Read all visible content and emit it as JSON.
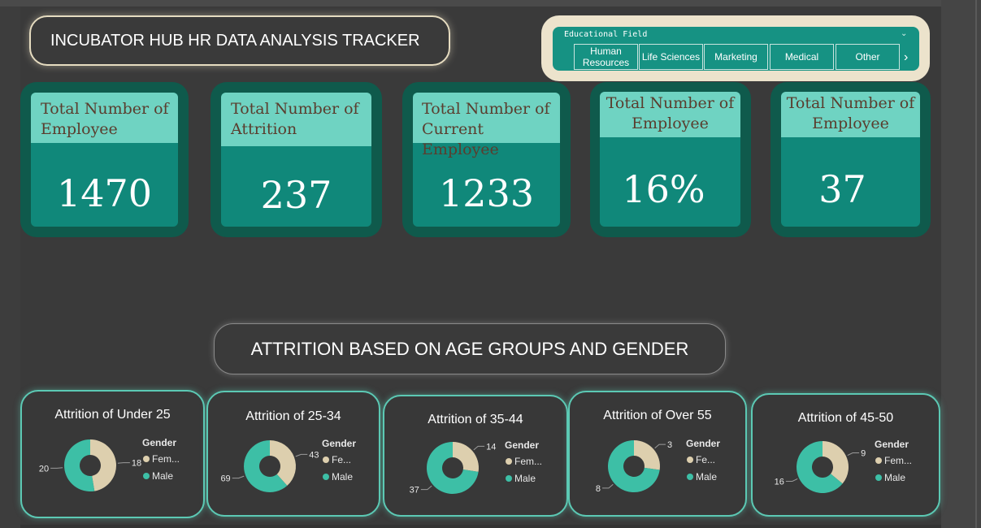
{
  "header": {
    "title": "INCUBATOR HUB HR DATA ANALYSIS TRACKER"
  },
  "slicer": {
    "label": "Educational Field",
    "options": [
      "Human Resources",
      "Life Sciences",
      "Marketing",
      "Medical",
      "Other"
    ],
    "colors": {
      "background": "#169283",
      "frame": "#ece3cc"
    }
  },
  "kpis": [
    {
      "title": "Total Number of Employee",
      "value": "1470"
    },
    {
      "title": "Total Number of Attrition",
      "value": "237"
    },
    {
      "title": "Total Number of Current Employee",
      "value": "1233"
    },
    {
      "title": "Total Number of Employee",
      "value": "16%"
    },
    {
      "title": "Total Number of Employee",
      "value": "37"
    }
  ],
  "section": {
    "title": "ATTRITION BASED ON AGE GROUPS AND GENDER"
  },
  "chart_data": [
    {
      "type": "pie",
      "title": "Attrition of Under 25",
      "legend_title": "Gender",
      "slices": [
        {
          "label": "Fem...",
          "value": 18,
          "color": "#ddcfae"
        },
        {
          "label": "Male",
          "value": 20,
          "color": "#3dbfa6"
        }
      ]
    },
    {
      "type": "pie",
      "title": "Attrition of 25-34",
      "legend_title": "Gender",
      "slices": [
        {
          "label": "Fe...",
          "value": 43,
          "color": "#ddcfae"
        },
        {
          "label": "Male",
          "value": 69,
          "color": "#3dbfa6"
        }
      ]
    },
    {
      "type": "pie",
      "title": "Attrition of 35-44",
      "legend_title": "Gender",
      "slices": [
        {
          "label": "Fem...",
          "value": 14,
          "color": "#ddcfae"
        },
        {
          "label": "Male",
          "value": 37,
          "color": "#3dbfa6"
        }
      ]
    },
    {
      "type": "pie",
      "title": "Attrition of Over 55",
      "legend_title": "Gender",
      "slices": [
        {
          "label": "Fe...",
          "value": 3,
          "color": "#ddcfae"
        },
        {
          "label": "Male",
          "value": 8,
          "color": "#3dbfa6"
        }
      ]
    },
    {
      "type": "pie",
      "title": "Attrition of 45-50",
      "legend_title": "Gender",
      "slices": [
        {
          "label": "Fem...",
          "value": 9,
          "color": "#ddcfae"
        },
        {
          "label": "Male",
          "value": 16,
          "color": "#3dbfa6"
        }
      ]
    }
  ]
}
